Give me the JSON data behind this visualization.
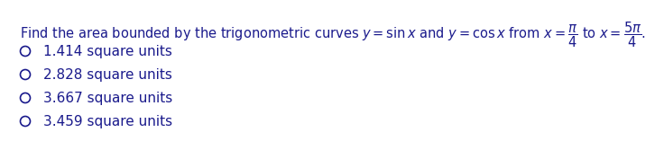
{
  "question_text": "Find the area bounded by the trigonometric curves $y=\\sin x$ and $y=\\cos x$ from $x=\\dfrac{\\pi}{4}$ to $x=\\dfrac{5\\pi}{4}$.",
  "choices": [
    "1.414 square units",
    "2.828 square units",
    "3.667 square units",
    "3.459 square units"
  ],
  "bg_color": "#ffffff",
  "text_color": "#1a1a8c",
  "font_size_question": 10.5,
  "font_size_choices": 11.0,
  "fig_width": 6.26,
  "fig_height": 1.47
}
